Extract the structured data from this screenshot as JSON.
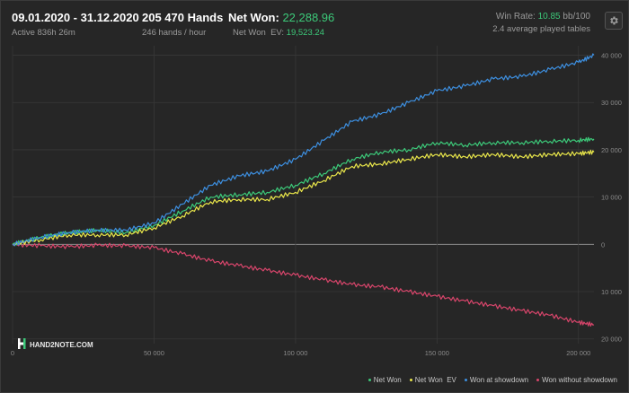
{
  "header": {
    "date_range": "09.01.2020 - 31.12.2020",
    "active": "Active 836h 26m",
    "hands": "205 470 Hands",
    "hands_per_hour": "246 hands / hour",
    "net_won_label": "Net Won:",
    "net_won_value": "22,288.96",
    "net_won_ev_label": "Net Won  EV:",
    "net_won_ev_value": "19,523.24",
    "win_rate_label": "Win Rate:",
    "win_rate_value": "10.85",
    "win_rate_unit": "bb/100",
    "avg_tables": "2.4 average played tables"
  },
  "logo_text": "HAND2NOTE.COM",
  "settings_icon": "gear-icon",
  "colors": {
    "net_won": "#3cc979",
    "net_won_ev": "#e9e64a",
    "won_at_showdown": "#3d8fe0",
    "won_without_showdown": "#d8456b",
    "grid": "#383838",
    "zero_line": "#8a8a8a"
  },
  "chart_data": {
    "type": "line",
    "x_tick_labels": [
      "0",
      "50 000",
      "100 000",
      "150 000",
      "200 000"
    ],
    "x_ticks": [
      0,
      50000,
      100000,
      150000,
      200000
    ],
    "y_tick_labels": [
      "40 000",
      "30 000",
      "20 000",
      "10 000",
      "0",
      "10 000",
      "20 000"
    ],
    "y_ticks": [
      40000,
      30000,
      20000,
      10000,
      0,
      -10000,
      -20000
    ],
    "xlim": [
      0,
      205470
    ],
    "ylim": [
      -21000,
      42000
    ],
    "grid": true,
    "legend_position": "bottom-right",
    "series": [
      {
        "name": "Net Won",
        "key": "net_won",
        "x": [
          0,
          10000,
          20000,
          30000,
          40000,
          50000,
          60000,
          70000,
          80000,
          90000,
          100000,
          110000,
          120000,
          130000,
          140000,
          150000,
          160000,
          170000,
          180000,
          190000,
          200000,
          205470
        ],
        "values": [
          0,
          1500,
          2500,
          3000,
          2500,
          4000,
          7000,
          10000,
          10500,
          11000,
          12500,
          15000,
          18000,
          19500,
          20000,
          21500,
          21000,
          21500,
          21500,
          21800,
          22000,
          22289
        ]
      },
      {
        "name": "Net Won  EV",
        "key": "net_won_ev",
        "x": [
          0,
          10000,
          20000,
          30000,
          40000,
          50000,
          60000,
          70000,
          80000,
          90000,
          100000,
          110000,
          120000,
          130000,
          140000,
          150000,
          160000,
          170000,
          180000,
          190000,
          200000,
          205470
        ],
        "values": [
          0,
          1000,
          2000,
          2000,
          2000,
          3500,
          6000,
          9000,
          9500,
          9500,
          11000,
          13500,
          16500,
          17000,
          18000,
          19000,
          18500,
          19000,
          18500,
          19000,
          19200,
          19523
        ]
      },
      {
        "name": "Won at showdown",
        "key": "won_at_showdown",
        "x": [
          0,
          10000,
          20000,
          30000,
          40000,
          50000,
          60000,
          70000,
          80000,
          90000,
          100000,
          110000,
          120000,
          130000,
          140000,
          150000,
          160000,
          170000,
          180000,
          190000,
          200000,
          205470
        ],
        "values": [
          0,
          1500,
          2500,
          3000,
          3000,
          4500,
          8500,
          12500,
          14500,
          15500,
          18000,
          22000,
          26000,
          27500,
          30000,
          32500,
          33500,
          35000,
          35500,
          37000,
          38500,
          40000
        ]
      },
      {
        "name": "Won without showdown",
        "key": "won_without_showdown",
        "x": [
          0,
          10000,
          20000,
          30000,
          40000,
          50000,
          60000,
          70000,
          80000,
          90000,
          100000,
          110000,
          120000,
          130000,
          140000,
          150000,
          160000,
          170000,
          180000,
          190000,
          200000,
          205470
        ],
        "values": [
          0,
          -300,
          -500,
          -200,
          -300,
          -700,
          -2000,
          -3500,
          -4500,
          -5500,
          -6500,
          -7500,
          -8500,
          -9000,
          -10000,
          -11000,
          -12000,
          -13000,
          -14000,
          -15000,
          -16500,
          -17000
        ]
      }
    ]
  }
}
